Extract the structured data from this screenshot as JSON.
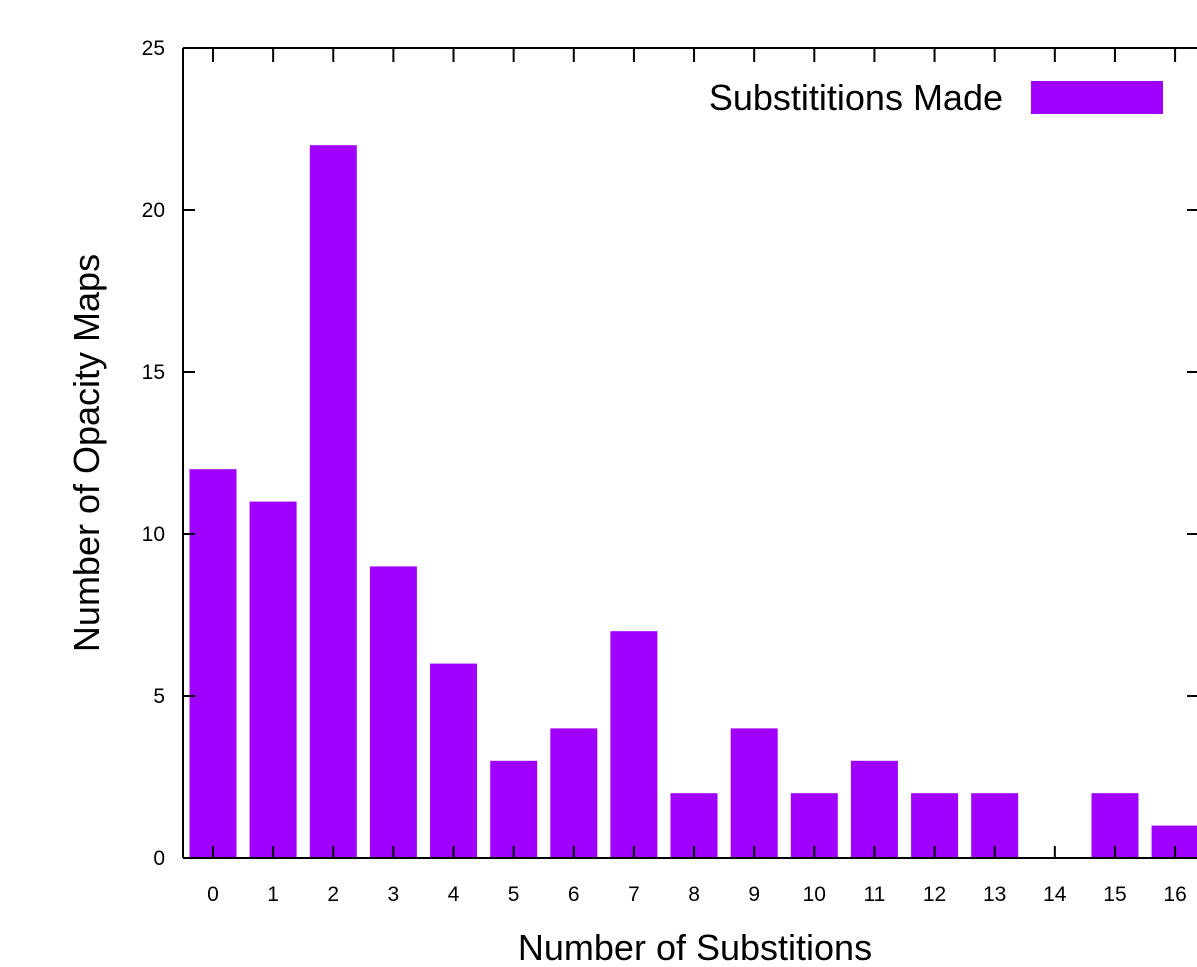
{
  "chart_data": {
    "type": "bar",
    "categories": [
      "0",
      "1",
      "2",
      "3",
      "4",
      "5",
      "6",
      "7",
      "8",
      "9",
      "10",
      "11",
      "12",
      "13",
      "14",
      "15",
      "16"
    ],
    "series": [
      {
        "name": "Substititions Made",
        "values": [
          12,
          11,
          22,
          9,
          6,
          3,
          4,
          7,
          2,
          4,
          2,
          3,
          2,
          2,
          0,
          2,
          1
        ],
        "color": "#a000ff"
      }
    ],
    "title": "",
    "xlabel": "Number of Substitions",
    "ylabel": "Number of Opacity Maps",
    "ylim": [
      0,
      25
    ],
    "yticks": [
      "0",
      "5",
      "10",
      "15",
      "20",
      "25"
    ],
    "grid": false,
    "legend_position": "top-right"
  }
}
